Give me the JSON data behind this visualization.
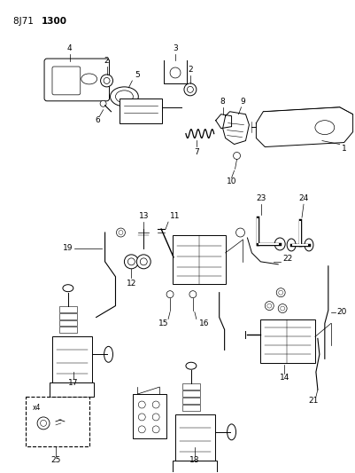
{
  "bg_color": "#ffffff",
  "fig_width": 4.01,
  "fig_height": 5.33,
  "dpi": 100,
  "title_normal": "8J71 ",
  "title_bold": "1300",
  "lw": 0.7
}
